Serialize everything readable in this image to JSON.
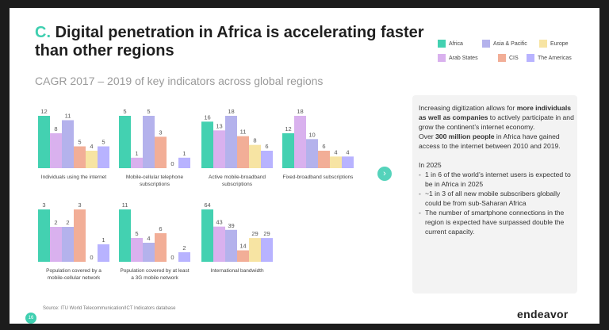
{
  "header": {
    "title_prefix": "C.",
    "title": "Digital penetration in Africa is accelerating faster than other regions",
    "subtitle": "CAGR 2017 – 2019 of key indicators across global regions"
  },
  "colors": {
    "Africa": "#43d1b1",
    "Asia & Pacific": "#b4b2ec",
    "Europe": "#f7e4a3",
    "Arab States": "#d9b1ee",
    "CIS": "#f2ae97",
    "The Americas": "#b8b3ff",
    "accent": "#3fcfb0"
  },
  "chart_data": [
    {
      "type": "bar",
      "xlabel": "Individuals using the internet",
      "series": [
        {
          "name": "Africa",
          "values": [
            12
          ]
        },
        {
          "name": "Asia & Pacific",
          "values": [
            11
          ]
        },
        {
          "name": "Europe",
          "values": [
            4
          ]
        },
        {
          "name": "Arab States",
          "values": [
            8
          ]
        },
        {
          "name": "CIS",
          "values": [
            5
          ]
        },
        {
          "name": "The Americas",
          "values": [
            5
          ]
        }
      ],
      "order": [
        "Africa",
        "Arab States",
        "Asia & Pacific",
        "CIS",
        "Europe",
        "The Americas"
      ],
      "ylim": [
        0,
        12
      ]
    },
    {
      "type": "bar",
      "xlabel": "Mobile-cellular telephone subscriptions",
      "series": [
        {
          "name": "Africa",
          "values": [
            5
          ]
        },
        {
          "name": "Arab States",
          "values": [
            1
          ]
        },
        {
          "name": "Asia & Pacific",
          "values": [
            5
          ]
        },
        {
          "name": "CIS",
          "values": [
            3
          ]
        },
        {
          "name": "Europe",
          "values": [
            0
          ]
        },
        {
          "name": "The Americas",
          "values": [
            1
          ]
        }
      ],
      "ylim": [
        0,
        5
      ]
    },
    {
      "type": "bar",
      "xlabel": "Active mobile-broadband subscriptions",
      "series": [
        {
          "name": "Africa",
          "values": [
            16
          ]
        },
        {
          "name": "Arab States",
          "values": [
            13
          ]
        },
        {
          "name": "Asia & Pacific",
          "values": [
            18
          ]
        },
        {
          "name": "CIS",
          "values": [
            11
          ]
        },
        {
          "name": "Europe",
          "values": [
            8
          ]
        },
        {
          "name": "The Americas",
          "values": [
            6
          ]
        }
      ],
      "ylim": [
        0,
        18
      ]
    },
    {
      "type": "bar",
      "xlabel": "Fixed-broadband subscriptions",
      "series": [
        {
          "name": "Africa",
          "values": [
            12
          ]
        },
        {
          "name": "Arab States",
          "values": [
            18
          ]
        },
        {
          "name": "Asia & Pacific",
          "values": [
            10
          ]
        },
        {
          "name": "CIS",
          "values": [
            6
          ]
        },
        {
          "name": "Europe",
          "values": [
            4
          ]
        },
        {
          "name": "The Americas",
          "values": [
            4
          ]
        }
      ],
      "ylim": [
        0,
        18
      ]
    },
    {
      "type": "bar",
      "xlabel": "Population covered by a mobile-cellular network",
      "series": [
        {
          "name": "Africa",
          "values": [
            3
          ]
        },
        {
          "name": "Arab States",
          "values": [
            2
          ]
        },
        {
          "name": "Asia & Pacific",
          "values": [
            2
          ]
        },
        {
          "name": "CIS",
          "values": [
            3
          ]
        },
        {
          "name": "Europe",
          "values": [
            0
          ]
        },
        {
          "name": "The Americas",
          "values": [
            1
          ]
        }
      ],
      "ylim": [
        0,
        3
      ]
    },
    {
      "type": "bar",
      "xlabel": "Population covered by at least a 3G mobile network",
      "series": [
        {
          "name": "Africa",
          "values": [
            11
          ]
        },
        {
          "name": "Arab States",
          "values": [
            5
          ]
        },
        {
          "name": "Asia & Pacific",
          "values": [
            4
          ]
        },
        {
          "name": "CIS",
          "values": [
            6
          ]
        },
        {
          "name": "Europe",
          "values": [
            0
          ]
        },
        {
          "name": "The Americas",
          "values": [
            2
          ]
        }
      ],
      "ylim": [
        0,
        11
      ]
    },
    {
      "type": "bar",
      "xlabel": "International bandwidth",
      "series": [
        {
          "name": "Africa",
          "values": [
            64
          ]
        },
        {
          "name": "Arab States",
          "values": [
            43
          ]
        },
        {
          "name": "Asia & Pacific",
          "values": [
            39
          ]
        },
        {
          "name": "CIS",
          "values": [
            14
          ]
        },
        {
          "name": "Europe",
          "values": [
            29
          ]
        },
        {
          "name": "The Americas",
          "values": [
            29
          ]
        }
      ],
      "ylim": [
        0,
        64
      ]
    }
  ],
  "panel": {
    "p1_a": "Increasing digitization allows for ",
    "p1_bold": "more individuals as well as companies",
    "p1_b": " to actively participate in and grow the continent’s internet economy.",
    "p2_a": "Over ",
    "p2_bold": "300 million people",
    "p2_b": " in Africa have gained access to the internet between 2010 and 2019.",
    "heading_2025": "In 2025",
    "bullets": [
      "1 in 6 of the world’s internet users is expected to be in Africa in 2025",
      "~1 in 3 of all new mobile subscribers globally could be from sub-Saharan Africa",
      "The number of smartphone connections in the region is expected have surpassed double the current capacity."
    ]
  },
  "footer": {
    "source": "Source: ITU World Telecommunication/ICT Indicators database",
    "page_number": "16",
    "logo": "endeavor"
  }
}
